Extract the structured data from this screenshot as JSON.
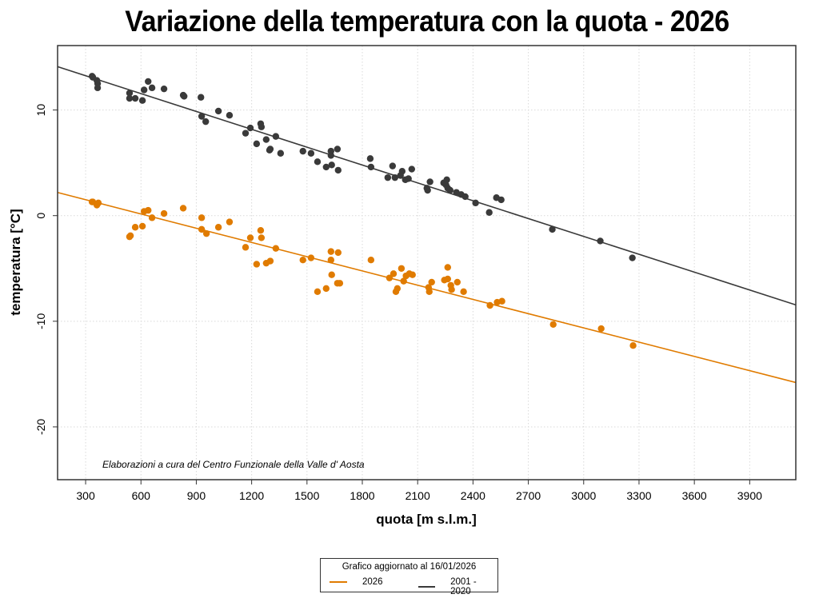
{
  "chart_data": {
    "type": "scatter",
    "title": "Variazione della temperatura con la quota -  2026",
    "xlabel": "quota [m s.l.m.]",
    "ylabel": "temperatura [°C]",
    "xlim": [
      148,
      4150
    ],
    "ylim": [
      -25,
      16.1
    ],
    "xticks": [
      300,
      600,
      900,
      1200,
      1500,
      1800,
      2100,
      2400,
      2700,
      3000,
      3300,
      3600,
      3900
    ],
    "yticks": [
      -20,
      -10,
      0,
      10
    ],
    "grid": true,
    "annotation": "Elaborazioni a cura del Centro Funzionale della Valle d' Aosta",
    "legend": {
      "placement": "bottom-center",
      "title": "Grafico aggiornato al 16/01/2026",
      "entries": [
        {
          "label": "2026",
          "color": "#e07b00"
        },
        {
          "label": "2001 - 2020",
          "color": "#3a3a3a"
        }
      ]
    },
    "series": [
      {
        "name": "2001 - 2020",
        "color": "#3a3a3a",
        "fit_line": {
          "x": [
            148,
            4150
          ],
          "y": [
            14.1,
            -8.45
          ]
        },
        "points": [
          [
            335,
            13.2
          ],
          [
            339,
            13.1
          ],
          [
            361,
            12.8
          ],
          [
            365,
            12.5
          ],
          [
            365,
            12.1
          ],
          [
            538,
            11.6
          ],
          [
            538,
            11.1
          ],
          [
            569,
            11.1
          ],
          [
            608,
            10.9
          ],
          [
            617,
            11.9
          ],
          [
            639,
            12.7
          ],
          [
            660,
            12.1
          ],
          [
            725,
            12.0
          ],
          [
            829,
            11.4
          ],
          [
            834,
            11.3
          ],
          [
            925,
            11.2
          ],
          [
            929,
            9.4
          ],
          [
            951,
            8.9
          ],
          [
            1020,
            9.9
          ],
          [
            1080,
            9.5
          ],
          [
            1167,
            7.8
          ],
          [
            1193,
            8.3
          ],
          [
            1227,
            6.8
          ],
          [
            1249,
            8.7
          ],
          [
            1253,
            8.4
          ],
          [
            1279,
            7.2
          ],
          [
            1297,
            6.2
          ],
          [
            1301,
            6.3
          ],
          [
            1331,
            7.5
          ],
          [
            1357,
            5.9
          ],
          [
            1478,
            6.1
          ],
          [
            1522,
            5.9
          ],
          [
            1557,
            5.1
          ],
          [
            1604,
            4.6
          ],
          [
            1630,
            6.1
          ],
          [
            1630,
            5.7
          ],
          [
            1634,
            4.8
          ],
          [
            1665,
            6.3
          ],
          [
            1669,
            4.3
          ],
          [
            1843,
            5.4
          ],
          [
            1847,
            4.6
          ],
          [
            1938,
            3.6
          ],
          [
            1964,
            4.7
          ],
          [
            1977,
            3.6
          ],
          [
            2007,
            3.8
          ],
          [
            2016,
            4.2
          ],
          [
            2033,
            3.4
          ],
          [
            2050,
            3.5
          ],
          [
            2068,
            4.4
          ],
          [
            2150,
            2.6
          ],
          [
            2154,
            2.4
          ],
          [
            2167,
            3.2
          ],
          [
            2241,
            3.1
          ],
          [
            2254,
            2.9
          ],
          [
            2258,
            3.4
          ],
          [
            2263,
            2.6
          ],
          [
            2276,
            2.4
          ],
          [
            2310,
            2.2
          ],
          [
            2336,
            2.0
          ],
          [
            2358,
            1.8
          ],
          [
            2414,
            1.2
          ],
          [
            2488,
            0.3
          ],
          [
            2527,
            1.7
          ],
          [
            2553,
            1.5
          ],
          [
            2830,
            -1.3
          ],
          [
            3090,
            -2.4
          ],
          [
            3264,
            -4.0
          ]
        ]
      },
      {
        "name": "2026",
        "color": "#e07b00",
        "fit_line": {
          "x": [
            148,
            4150
          ],
          "y": [
            2.19,
            -15.8
          ]
        },
        "points": [
          [
            335,
            1.3
          ],
          [
            339,
            1.3
          ],
          [
            361,
            1.0
          ],
          [
            369,
            1.2
          ],
          [
            538,
            -2.0
          ],
          [
            543,
            -1.9
          ],
          [
            569,
            -1.1
          ],
          [
            608,
            -1.0
          ],
          [
            617,
            0.4
          ],
          [
            639,
            0.5
          ],
          [
            660,
            -0.2
          ],
          [
            725,
            0.2
          ],
          [
            829,
            0.7
          ],
          [
            929,
            -0.2
          ],
          [
            929,
            -1.3
          ],
          [
            955,
            -1.7
          ],
          [
            1020,
            -1.1
          ],
          [
            1080,
            -0.6
          ],
          [
            1167,
            -3.0
          ],
          [
            1193,
            -2.1
          ],
          [
            1227,
            -4.6
          ],
          [
            1249,
            -1.4
          ],
          [
            1253,
            -2.1
          ],
          [
            1279,
            -4.5
          ],
          [
            1301,
            -4.3
          ],
          [
            1331,
            -3.1
          ],
          [
            1478,
            -4.2
          ],
          [
            1522,
            -4.0
          ],
          [
            1557,
            -7.2
          ],
          [
            1604,
            -6.9
          ],
          [
            1630,
            -3.4
          ],
          [
            1630,
            -4.2
          ],
          [
            1634,
            -5.6
          ],
          [
            1665,
            -6.4
          ],
          [
            1669,
            -3.5
          ],
          [
            1678,
            -6.4
          ],
          [
            1847,
            -4.2
          ],
          [
            1947,
            -5.9
          ],
          [
            1969,
            -5.5
          ],
          [
            1982,
            -7.2
          ],
          [
            1990,
            -6.9
          ],
          [
            2012,
            -5.0
          ],
          [
            2024,
            -6.2
          ],
          [
            2037,
            -5.7
          ],
          [
            2055,
            -5.5
          ],
          [
            2072,
            -5.6
          ],
          [
            2159,
            -6.8
          ],
          [
            2163,
            -7.2
          ],
          [
            2176,
            -6.3
          ],
          [
            2245,
            -6.1
          ],
          [
            2263,
            -6.0
          ],
          [
            2263,
            -4.9
          ],
          [
            2280,
            -6.6
          ],
          [
            2284,
            -7.0
          ],
          [
            2315,
            -6.3
          ],
          [
            2349,
            -7.2
          ],
          [
            2492,
            -8.5
          ],
          [
            2531,
            -8.2
          ],
          [
            2557,
            -8.1
          ],
          [
            2835,
            -10.3
          ],
          [
            3095,
            -10.7
          ],
          [
            3268,
            -12.3
          ]
        ]
      }
    ]
  }
}
